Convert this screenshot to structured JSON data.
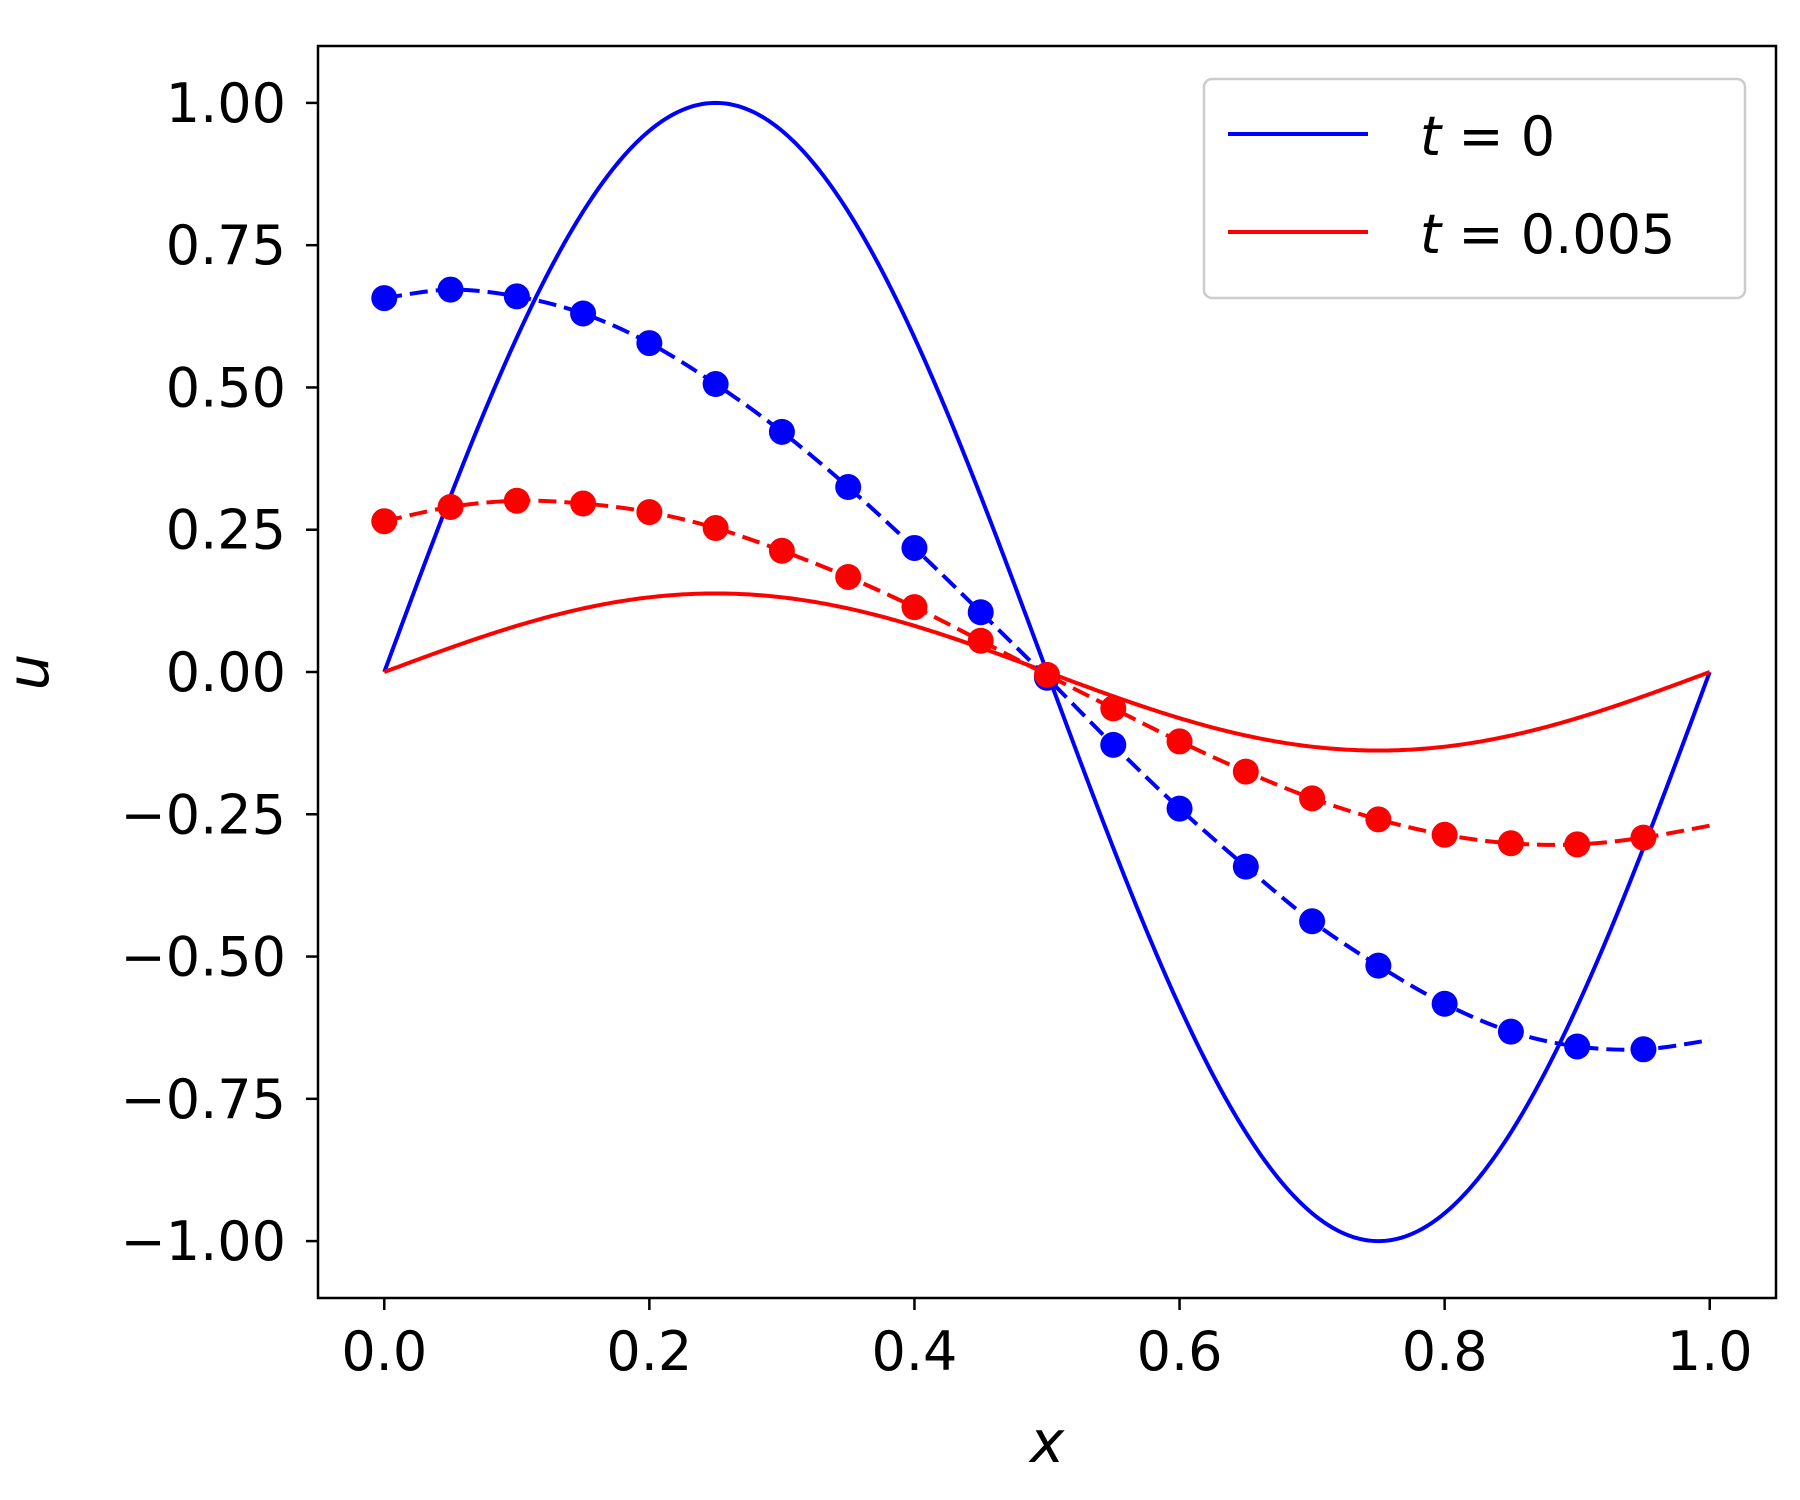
{
  "chart_data": {
    "type": "line",
    "xlabel": "x",
    "ylabel": "u",
    "xlim": [
      -0.05,
      1.05
    ],
    "ylim": [
      -1.1,
      1.1
    ],
    "x_ticks": [
      "0.0",
      "0.2",
      "0.4",
      "0.6",
      "0.8",
      "1.0"
    ],
    "y_ticks": [
      "1.00",
      "0.75",
      "0.50",
      "0.25",
      "0.00",
      "−0.25",
      "−0.50",
      "−0.75",
      "−1.00"
    ],
    "grid": false,
    "legend": {
      "position": "top-right",
      "entries": [
        {
          "var": "t",
          "rest": " = 0",
          "color": "#0000ff"
        },
        {
          "var": "t",
          "rest": " = 0.005",
          "color": "#ff0000"
        }
      ]
    },
    "series": [
      {
        "legend": "t = 0",
        "color": "#0000ff",
        "style": "solid",
        "function": "sin(2πx)",
        "x": [
          0,
          0.05,
          0.1,
          0.15,
          0.2,
          0.25,
          0.3,
          0.35,
          0.4,
          0.45,
          0.5,
          0.55,
          0.6,
          0.65,
          0.7,
          0.75,
          0.8,
          0.85,
          0.9,
          0.95,
          1.0
        ],
        "y": [
          0.0,
          0.309,
          0.588,
          0.809,
          0.951,
          1.0,
          0.951,
          0.809,
          0.588,
          0.309,
          0.0,
          -0.309,
          -0.588,
          -0.809,
          -0.951,
          -1.0,
          -0.951,
          -0.809,
          -0.588,
          -0.309,
          0.0
        ]
      },
      {
        "legend": "t = 0.005",
        "color": "#ff0000",
        "style": "solid",
        "function": "0.138·sin(2πx)",
        "x": [
          0,
          0.05,
          0.1,
          0.15,
          0.2,
          0.25,
          0.3,
          0.35,
          0.4,
          0.45,
          0.5,
          0.55,
          0.6,
          0.65,
          0.7,
          0.75,
          0.8,
          0.85,
          0.9,
          0.95,
          1.0
        ],
        "y": [
          0.0,
          0.043,
          0.081,
          0.112,
          0.131,
          0.138,
          0.131,
          0.112,
          0.081,
          0.043,
          0.0,
          -0.043,
          -0.081,
          -0.112,
          -0.131,
          -0.138,
          -0.131,
          -0.112,
          -0.081,
          -0.043,
          0.0
        ]
      },
      {
        "color": "#0000ff",
        "style": "dashed-markers",
        "x": [
          0,
          0.05,
          0.1,
          0.15,
          0.2,
          0.25,
          0.3,
          0.35,
          0.4,
          0.45,
          0.5,
          0.55,
          0.6,
          0.65,
          0.7,
          0.75,
          0.8,
          0.85,
          0.9,
          0.95
        ],
        "y": [
          0.657,
          0.672,
          0.66,
          0.63,
          0.578,
          0.506,
          0.422,
          0.325,
          0.218,
          0.105,
          -0.01,
          -0.128,
          -0.24,
          -0.342,
          -0.438,
          -0.516,
          -0.583,
          -0.632,
          -0.658,
          -0.663
        ]
      },
      {
        "color": "#ff0000",
        "style": "dashed-markers",
        "x": [
          0,
          0.05,
          0.1,
          0.15,
          0.2,
          0.25,
          0.3,
          0.35,
          0.4,
          0.45,
          0.5,
          0.55,
          0.6,
          0.65,
          0.7,
          0.75,
          0.8,
          0.85,
          0.9,
          0.95
        ],
        "y": [
          0.265,
          0.29,
          0.301,
          0.296,
          0.281,
          0.253,
          0.213,
          0.167,
          0.114,
          0.055,
          -0.005,
          -0.064,
          -0.122,
          -0.175,
          -0.222,
          -0.259,
          -0.286,
          -0.301,
          -0.303,
          -0.291
        ]
      }
    ],
    "dashed_end": {
      "blue": {
        "x": 1.0,
        "y": -0.647
      },
      "red": {
        "x": 1.0,
        "y": -0.27
      }
    }
  }
}
